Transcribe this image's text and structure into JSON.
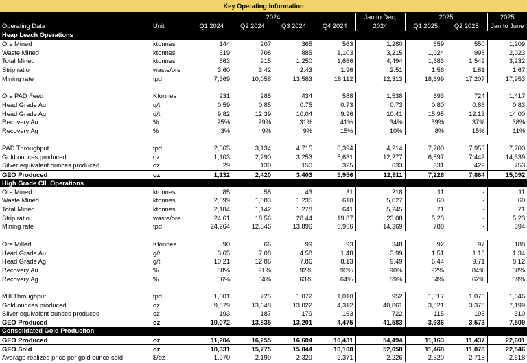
{
  "header": {
    "title": "Key Operating Information",
    "year_2024": "2024",
    "jan_dec": "Jan to Dec,",
    "year_2025": "2025",
    "year_2025_h1": "2025",
    "columns": [
      "Operating Data",
      "Unit",
      "Q1 2024",
      "Q2 2024",
      "Q3 2024",
      "Q4 2024",
      "2024",
      "Q1 2025",
      "Q2 2025",
      "Jan to June"
    ]
  },
  "sections": [
    {
      "title": "Heap Leach Operations",
      "groups": [
        [
          {
            "label": "Ore Mined",
            "unit": "ktonnes",
            "values": [
              "144",
              "207",
              "365",
              "563",
              "1,280",
              "659",
              "550",
              "1,209"
            ]
          },
          {
            "label": "Waste Mined",
            "unit": "ktonnes",
            "values": [
              "519",
              "708",
              "885",
              "1,103",
              "3,215",
              "1,024",
              "998",
              "2,023"
            ]
          },
          {
            "label": "Total Mined",
            "unit": "ktonnes",
            "values": [
              "663",
              "915",
              "1,250",
              "1,666",
              "4,494",
              "1,683",
              "1,549",
              "3,232"
            ]
          },
          {
            "label": "Strip ratio",
            "unit": "waste/ore",
            "values": [
              "3.60",
              "3.42",
              "2.43",
              "1.96",
              "2.51",
              "1.56",
              "1.81",
              "1.67"
            ]
          },
          {
            "label": "Mining rate",
            "unit": "tpd",
            "values": [
              "7,369",
              "10,058",
              "13,583",
              "18,112",
              "12,313",
              "18,699",
              "17,207",
              "17,953"
            ]
          }
        ],
        [
          {
            "label": "Ore PAD Feed",
            "unit": "Ktonnes",
            "values": [
              "231",
              "285",
              "434",
              "588",
              "1,538",
              "693",
              "724",
              "1,417"
            ]
          },
          {
            "label": "Head Grade Au",
            "unit": "g/t",
            "values": [
              "0.59",
              "0.85",
              "0.75",
              "0.73",
              "0.73",
              "0.80",
              "0.86",
              "0.83"
            ]
          },
          {
            "label": "Head Grade Ag",
            "unit": "g/t",
            "values": [
              "9.82",
              "12.39",
              "10.04",
              "9.96",
              "10.41",
              "15.95",
              "12.13",
              "14.00"
            ]
          },
          {
            "label": "Recovery Au",
            "unit": "%",
            "values": [
              "25%",
              "29%",
              "31%",
              "41%",
              "34%",
              "39%",
              "37%",
              "38%"
            ]
          },
          {
            "label": "Recovery Ag",
            "unit": "%",
            "values": [
              "3%",
              "9%",
              "9%",
              "15%",
              "10%",
              "8%",
              "15%",
              "11%"
            ]
          }
        ],
        [
          {
            "label": "PAD Throughput",
            "unit": "tpd",
            "values": [
              "2,565",
              "3,134",
              "4,715",
              "6,394",
              "4,214",
              "7,700",
              "7,953",
              "7,700"
            ]
          },
          {
            "label": "Gold ounces produced",
            "unit": "oz",
            "values": [
              "1,103",
              "2,290",
              "3,253",
              "5,631",
              "12,277",
              "6,897",
              "7,442",
              "14,339"
            ]
          },
          {
            "label": "Silver equivalent ounces produced",
            "unit": "oz",
            "values": [
              "29",
              "130",
              "150",
              "325",
              "633",
              "331",
              "422",
              "753"
            ]
          },
          {
            "label": "GEO Produced",
            "unit": "oz",
            "bold": true,
            "values": [
              "1,132",
              "2,420",
              "3,403",
              "5,956",
              "12,911",
              "7,228",
              "7,864",
              "15,092"
            ]
          }
        ]
      ]
    },
    {
      "title": "High Grade CIL Operations",
      "groups": [
        [
          {
            "label": "Ore Mined",
            "unit": "ktonnes",
            "values": [
              "85",
              "58",
              "43",
              "31",
              "218",
              "11",
              "-",
              "11"
            ]
          },
          {
            "label": "Waste Mined",
            "unit": "ktonnes",
            "values": [
              "2,099",
              "1,083",
              "1,235",
              "610",
              "5,027",
              "60",
              "-",
              "60"
            ]
          },
          {
            "label": "Total Mined",
            "unit": "ktonnes",
            "values": [
              "2,184",
              "1,142",
              "1,278",
              "641",
              "5,245",
              "71",
              "-",
              "71"
            ]
          },
          {
            "label": "Strip ratio",
            "unit": "waste/ore",
            "values": [
              "24.61",
              "18.56",
              "28.44",
              "19.87",
              "23.08",
              "5.23",
              "-",
              "5.23"
            ]
          },
          {
            "label": "Mining rate",
            "unit": "tpd",
            "values": [
              "24,264",
              "12,546",
              "13,896",
              "6,966",
              "14,369",
              "788",
              "-",
              "394"
            ]
          }
        ],
        [
          {
            "label": "Ore Milled",
            "unit": "Ktonnes",
            "values": [
              "90",
              "66",
              "99",
              "93",
              "348",
              "92",
              "97",
              "188"
            ]
          },
          {
            "label": "Head Grade Au",
            "unit": "g/t",
            "values": [
              "3.65",
              "7.08",
              "4.58",
              "1.48",
              "3.99",
              "1.51",
              "1.18",
              "1.34"
            ]
          },
          {
            "label": "Head Grade Ag",
            "unit": "g/t",
            "values": [
              "10.21",
              "12.86",
              "7.86",
              "8.13",
              "9.49",
              "6.44",
              "9.71",
              "8.12"
            ]
          },
          {
            "label": "Recovery Au",
            "unit": "%",
            "values": [
              "88%",
              "91%",
              "92%",
              "90%",
              "90%",
              "92%",
              "84%",
              "88%"
            ]
          },
          {
            "label": "Recovery Ag",
            "unit": "%",
            "values": [
              "56%",
              "54%",
              "63%",
              "64%",
              "59%",
              "54%",
              "62%",
              "59%"
            ]
          }
        ],
        [
          {
            "label": "Mill Throughput",
            "unit": "tpd",
            "values": [
              "1,001",
              "725",
              "1,072",
              "1,010",
              "952",
              "1,017",
              "1,076",
              "1,046"
            ]
          },
          {
            "label": "Gold ounces produced",
            "unit": "oz",
            "values": [
              "9,879",
              "13,648",
              "13,022",
              "4,312",
              "40,861",
              "3,821",
              "3,378",
              "7,199"
            ]
          },
          {
            "label": "Silver equivalent ounces produced",
            "unit": "oz",
            "values": [
              "193",
              "187",
              "179",
              "163",
              "722",
              "115",
              "195",
              "310"
            ]
          },
          {
            "label": "GEO Produced",
            "unit": "oz",
            "bold": true,
            "values": [
              "10,072",
              "13,835",
              "13,201",
              "4,475",
              "41,583",
              "3,936",
              "3,573",
              "7,509"
            ]
          }
        ]
      ]
    },
    {
      "title": "Consolidated Gold Produciton",
      "groups": [
        [
          {
            "label": "GEO Produced",
            "unit": "oz",
            "bold": true,
            "values": [
              "11,204",
              "16,255",
              "16,604",
              "10,431",
              "54,494",
              "11,163",
              "11,437",
              "22,601"
            ]
          },
          {
            "label": "GEO Sold",
            "unit": "oz",
            "bold": true,
            "values": [
              "10,331",
              "15,775",
              "15,844",
              "10,108",
              "52,058",
              "11,468",
              "11,078",
              "22,546"
            ]
          },
          {
            "label": "Average realized price per gold ounce sold",
            "unit": "$/oz",
            "values": [
              "1,970",
              "2,199",
              "2,329",
              "2,371",
              "2,226",
              "2,520",
              "2,715",
              "2,618"
            ]
          }
        ]
      ]
    }
  ]
}
